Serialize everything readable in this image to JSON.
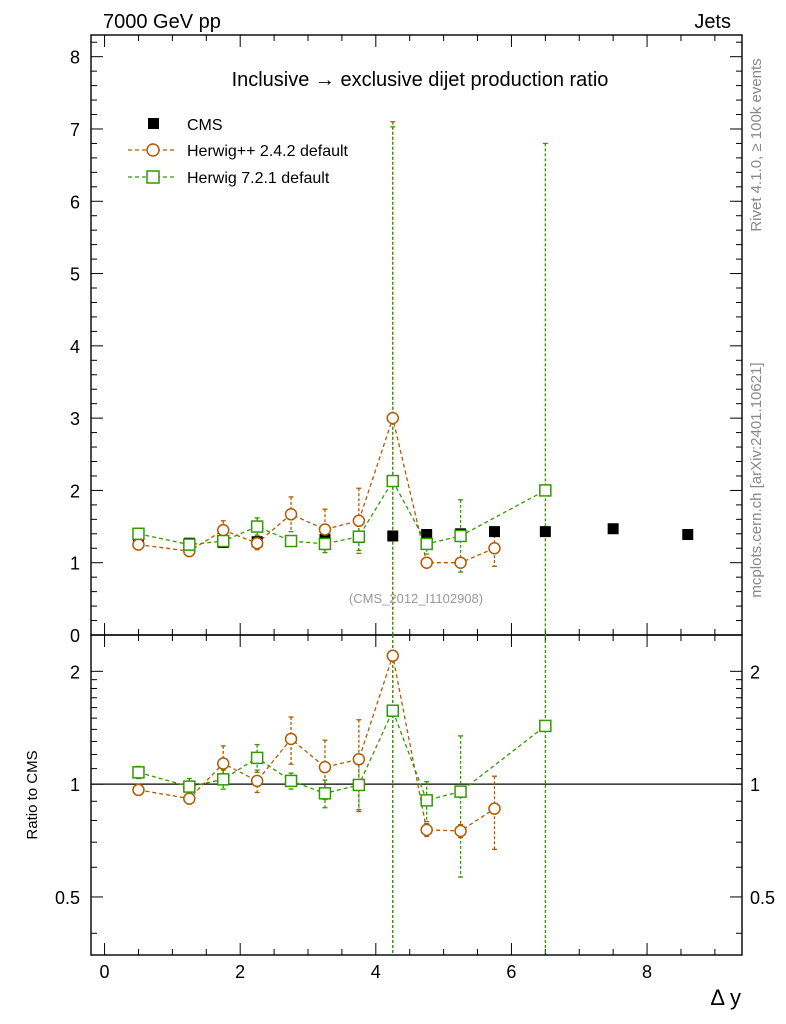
{
  "header": {
    "energy_label": "7000 GeV pp",
    "category_label": "Jets",
    "side_label_rivet": "Rivet 4.1.0, ≥ 100k events",
    "side_label_mcplots": "mcplots.cern.ch [arXiv:2401.10621]"
  },
  "chart_data": {
    "type": "scatter",
    "title": "Inclusive → exclusive dijet production ratio",
    "watermark": "(CMS_2012_I1102908)",
    "xlabel": "Δ y",
    "ylabel_ratio": "Ratio to CMS",
    "xlim": [
      -0.2,
      9.4
    ],
    "ylim_main": [
      0,
      8.3
    ],
    "ylim_ratio": [
      0.35,
      2.5
    ],
    "ratio_scale": "log",
    "x_ticks": [
      0,
      2,
      4,
      6,
      8
    ],
    "x_tick_labels": [
      "0",
      "2",
      "4",
      "6",
      "8"
    ],
    "y_ticks_main": [
      0,
      1,
      2,
      3,
      4,
      5,
      6,
      7,
      8
    ],
    "y_tick_labels_main": [
      "0",
      "1",
      "2",
      "3",
      "4",
      "5",
      "6",
      "7",
      "8"
    ],
    "y_ticks_ratio": [
      0.5,
      1,
      2
    ],
    "y_tick_labels_ratio": [
      "0.5",
      "1",
      "2"
    ],
    "legend_position": "top-left",
    "series": [
      {
        "name": "CMS",
        "color": "#000000",
        "marker": "filled-square",
        "x": [
          0.5,
          1.25,
          1.75,
          2.25,
          2.75,
          3.25,
          3.75,
          4.25,
          4.75,
          5.25,
          5.75,
          6.5,
          7.5,
          8.6
        ],
        "y": [
          1.3,
          1.27,
          1.28,
          1.29,
          1.3,
          1.32,
          1.35,
          1.37,
          1.39,
          1.4,
          1.43,
          1.43,
          1.47,
          1.39
        ]
      },
      {
        "name": "Herwig++ 2.4.2 default",
        "color": "#b35900",
        "marker": "open-circle",
        "x": [
          0.5,
          1.25,
          1.75,
          2.25,
          2.75,
          3.25,
          3.75,
          4.25,
          4.75,
          5.25,
          5.75
        ],
        "y": [
          1.25,
          1.16,
          1.45,
          1.27,
          1.67,
          1.46,
          1.58,
          3.0,
          1.0,
          1.0,
          1.2
        ],
        "yerr": [
          0.04,
          0.04,
          0.13,
          0.09,
          0.24,
          0.28,
          0.45,
          4.1,
          0.04,
          0.04,
          0.25
        ],
        "ratio": [
          0.965,
          0.915,
          1.135,
          1.02,
          1.32,
          1.11,
          1.165,
          2.2,
          0.755,
          0.75,
          0.86
        ],
        "ratio_err": [
          0.03,
          0.03,
          0.13,
          0.07,
          0.19,
          0.2,
          0.32,
          3.0,
          0.03,
          0.03,
          0.19
        ]
      },
      {
        "name": "Herwig 7.2.1 default",
        "color": "#339900",
        "marker": "open-square",
        "x": [
          0.5,
          1.25,
          1.75,
          2.25,
          2.75,
          3.25,
          3.75,
          4.25,
          4.75,
          5.25,
          6.5
        ],
        "y": [
          1.4,
          1.25,
          1.3,
          1.5,
          1.3,
          1.26,
          1.36,
          2.13,
          1.26,
          1.37,
          2.0
        ],
        "yerr": [
          0.04,
          0.06,
          0.07,
          0.12,
          0.06,
          0.12,
          0.19,
          4.9,
          0.14,
          0.5,
          4.8
        ],
        "ratio": [
          1.075,
          0.985,
          1.03,
          1.175,
          1.02,
          0.945,
          0.995,
          1.57,
          0.905,
          0.955,
          1.43
        ],
        "ratio_err": [
          0.04,
          0.05,
          0.06,
          0.1,
          0.05,
          0.08,
          0.14,
          3.5,
          0.11,
          0.39,
          3.4
        ]
      }
    ]
  }
}
